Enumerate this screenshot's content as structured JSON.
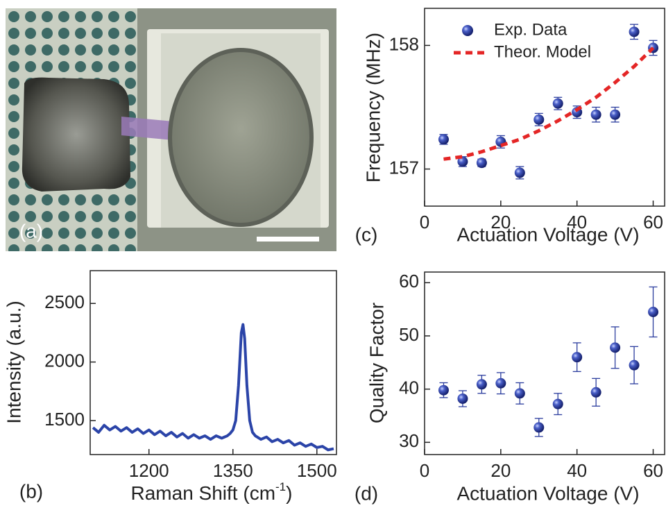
{
  "chart_data": [
    {
      "type": "image",
      "panel_label": "(a)"
    },
    {
      "type": "line",
      "panel_label": "(b)",
      "xlabel_parts": [
        "Raman Shift (cm",
        "-1",
        ")"
      ],
      "ylabel": "Intensity (a.u.)",
      "x": [
        1100,
        1110,
        1120,
        1130,
        1140,
        1150,
        1160,
        1170,
        1180,
        1190,
        1200,
        1210,
        1220,
        1230,
        1240,
        1250,
        1260,
        1270,
        1280,
        1290,
        1300,
        1310,
        1320,
        1330,
        1340,
        1345,
        1350,
        1355,
        1360,
        1365,
        1368,
        1371,
        1375,
        1380,
        1385,
        1390,
        1400,
        1410,
        1420,
        1430,
        1440,
        1450,
        1460,
        1470,
        1480,
        1490,
        1500,
        1510,
        1520,
        1530
      ],
      "values": [
        1440,
        1400,
        1460,
        1420,
        1450,
        1410,
        1440,
        1400,
        1430,
        1390,
        1420,
        1380,
        1410,
        1370,
        1400,
        1360,
        1390,
        1350,
        1380,
        1350,
        1370,
        1340,
        1370,
        1350,
        1370,
        1390,
        1420,
        1500,
        1800,
        2250,
        2320,
        2200,
        1800,
        1500,
        1400,
        1370,
        1340,
        1360,
        1320,
        1340,
        1310,
        1330,
        1290,
        1310,
        1280,
        1300,
        1270,
        1280,
        1250,
        1260
      ],
      "color": "#2b44a8",
      "xlim": [
        1095,
        1535
      ],
      "ylim": [
        1210,
        2780
      ],
      "xticks": [
        1200,
        1350,
        1500
      ],
      "yticks": [
        1500,
        2000,
        2500
      ]
    },
    {
      "type": "scatter",
      "panel_label": "(c)",
      "xlabel": "Actuation Voltage (V)",
      "ylabel": "Frequency (MHz)",
      "x": [
        5,
        10,
        15,
        20,
        25,
        30,
        35,
        40,
        45,
        50,
        55,
        60
      ],
      "series": [
        {
          "name": "Exp. Data",
          "color": "#2b3d9e",
          "values": [
            157.24,
            157.06,
            157.05,
            157.22,
            156.97,
            157.4,
            157.53,
            157.46,
            157.44,
            157.44,
            158.11,
            157.98
          ],
          "errors": [
            0.04,
            0.04,
            0.03,
            0.05,
            0.05,
            0.05,
            0.05,
            0.05,
            0.06,
            0.06,
            0.06,
            0.06
          ]
        },
        {
          "name": "Theor. Model",
          "color": "#e42626",
          "line_style": "dashed",
          "values": [
            157.08,
            157.1,
            157.14,
            157.19,
            157.24,
            157.31,
            157.39,
            157.48,
            157.58,
            157.7,
            157.83,
            157.98
          ]
        }
      ],
      "xlim": [
        0,
        63
      ],
      "ylim": [
        156.7,
        158.3
      ],
      "xticks": [
        0,
        20,
        40,
        60
      ],
      "yticks": [
        157,
        158
      ],
      "legend": "upper-left"
    },
    {
      "type": "scatter",
      "panel_label": "(d)",
      "xlabel": "Actuation Voltage (V)",
      "ylabel": "Quality Factor",
      "x": [
        5,
        10,
        15,
        20,
        25,
        30,
        35,
        40,
        45,
        50,
        55,
        60
      ],
      "series": [
        {
          "color": "#2b3d9e",
          "values": [
            39.8,
            38.2,
            40.9,
            41.1,
            39.2,
            32.8,
            37.2,
            46.0,
            39.4,
            47.8,
            44.5,
            54.5
          ],
          "errors": [
            1.4,
            1.5,
            1.7,
            2.0,
            2.0,
            1.7,
            2.0,
            2.7,
            2.6,
            3.9,
            3.5,
            4.7
          ]
        }
      ],
      "xlim": [
        0,
        63
      ],
      "ylim": [
        27.7,
        62
      ],
      "xticks": [
        0,
        20,
        40,
        60
      ],
      "yticks": [
        30,
        40,
        50,
        60
      ]
    }
  ]
}
